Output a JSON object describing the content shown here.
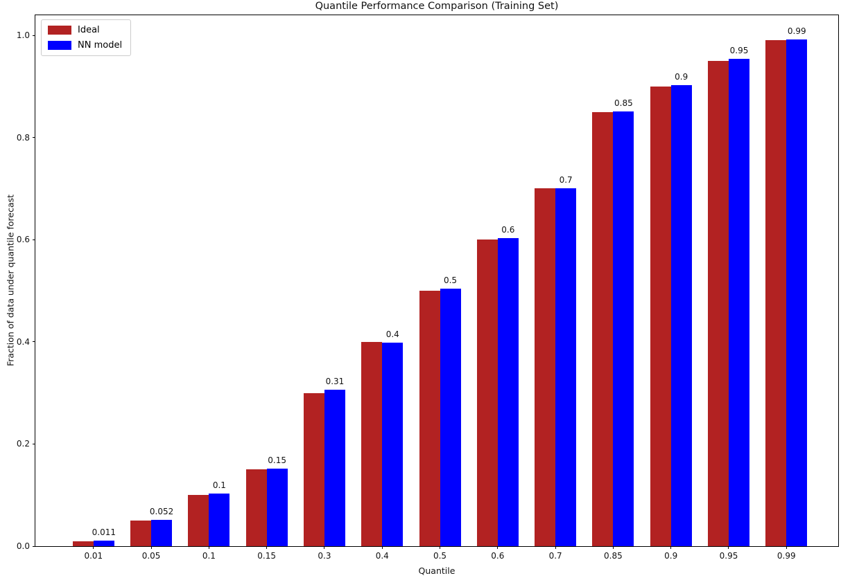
{
  "chart_data": {
    "type": "bar",
    "title": "Quantile Performance Comparison (Training Set)",
    "xlabel": "Quantile",
    "ylabel": "Fraction of data under quantile forecast",
    "categories": [
      "0.01",
      "0.05",
      "0.1",
      "0.15",
      "0.3",
      "0.4",
      "0.5",
      "0.6",
      "0.7",
      "0.85",
      "0.9",
      "0.95",
      "0.99"
    ],
    "series": [
      {
        "name": "Ideal",
        "color": "#b22222",
        "values": [
          0.01,
          0.05,
          0.1,
          0.15,
          0.3,
          0.4,
          0.5,
          0.6,
          0.7,
          0.85,
          0.9,
          0.95,
          0.99
        ]
      },
      {
        "name": "NN model",
        "color": "#0000ff",
        "values": [
          0.011,
          0.052,
          0.103,
          0.152,
          0.306,
          0.398,
          0.504,
          0.603,
          0.7,
          0.851,
          0.902,
          0.954,
          0.992
        ],
        "bar_labels": [
          "0.011",
          "0.052",
          "0.1",
          "0.15",
          "0.31",
          "0.4",
          "0.5",
          "0.6",
          "0.7",
          "0.85",
          "0.9",
          "0.95",
          "0.99"
        ]
      }
    ],
    "ylim": [
      0,
      1.042
    ],
    "yticks": {
      "values": [
        0.0,
        0.2,
        0.4,
        0.6,
        0.8,
        1.0
      ],
      "labels": [
        "0.0",
        "0.2",
        "0.4",
        "0.6",
        "0.8",
        "1.0"
      ]
    },
    "legend_position": "upper left",
    "grid": false,
    "bar_label_series": "NN model"
  }
}
